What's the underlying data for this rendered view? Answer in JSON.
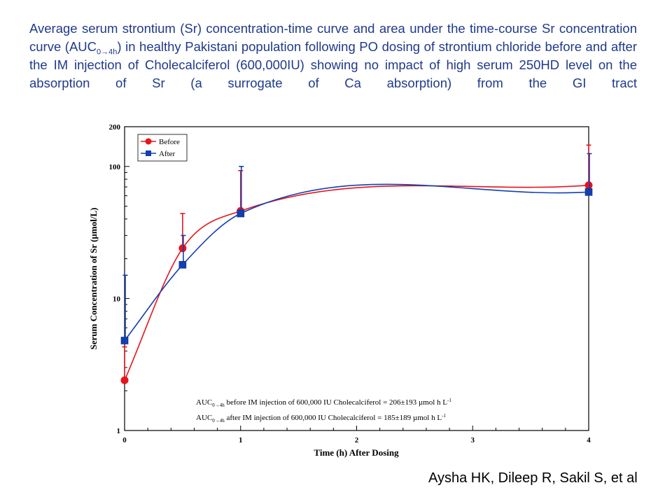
{
  "caption": {
    "part1": "Average serum strontium (Sr) concentration-time curve and area under the time-course Sr concentration curve (AUC",
    "sub": "0→4h",
    "part2": ") in healthy Pakistani population following PO dosing of strontium chloride before and after the IM injection of Cholecalciferol (600,000IU) showing no impact of high serum 250HD level on the absorption of Sr (a surrogate of Ca absorption) from the GI tract"
  },
  "authors": "Aysha HK, Dileep R, Sakil S, et al",
  "chart_data": {
    "type": "line",
    "xlabel": "Time (h) After Dosing",
    "ylabel": "Serum Concentration of Sr (µmol/L)",
    "xlim": [
      0,
      4
    ],
    "ylim": [
      1,
      200
    ],
    "yscale": "log",
    "xticks": [
      "0",
      "1",
      "2",
      "3",
      "4"
    ],
    "yticks": [
      "1",
      "10",
      "100",
      "200"
    ],
    "legend_position": "top-left",
    "grid": false,
    "series": [
      {
        "name": "Before",
        "color": "#e8141b",
        "marker": "circle",
        "x": [
          0,
          0.5,
          1,
          4
        ],
        "y": [
          2.4,
          24,
          46,
          72
        ],
        "err_upper": [
          4.3,
          44,
          93,
          145
        ]
      },
      {
        "name": "After",
        "color": "#1240b0",
        "marker": "square",
        "x": [
          0,
          0.5,
          1,
          4
        ],
        "y": [
          4.8,
          18,
          44,
          64
        ],
        "err_upper": [
          15,
          30,
          100,
          125
        ]
      }
    ],
    "annotations": [
      {
        "pre": "AUC",
        "sub": "0→4h",
        "text": " before IM injection of 600,000 IU Cholecalciferol = 206±193 µmol h L",
        "sup": "-1"
      },
      {
        "pre": "AUC",
        "sub": "0→4h",
        "text": " after IM injection of 600,000 IU Cholecalciferol = 185±189 µmol h L",
        "sup": "-1"
      }
    ]
  }
}
